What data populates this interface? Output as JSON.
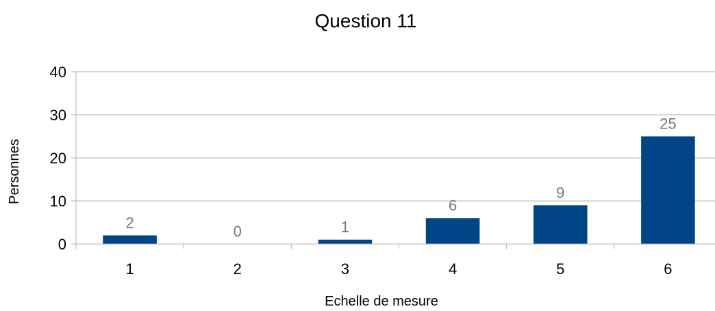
{
  "chart_data": {
    "type": "bar",
    "title": "Question 11",
    "xlabel": "Echelle de mesure",
    "ylabel": "Personnes",
    "categories": [
      "1",
      "2",
      "3",
      "4",
      "5",
      "6"
    ],
    "values": [
      2,
      0,
      1,
      6,
      9,
      25
    ],
    "ylim": [
      0,
      40
    ],
    "yticks": [
      0,
      10,
      20,
      30,
      40
    ],
    "grid": true,
    "bar_color": "#004586",
    "data_labels": true
  }
}
